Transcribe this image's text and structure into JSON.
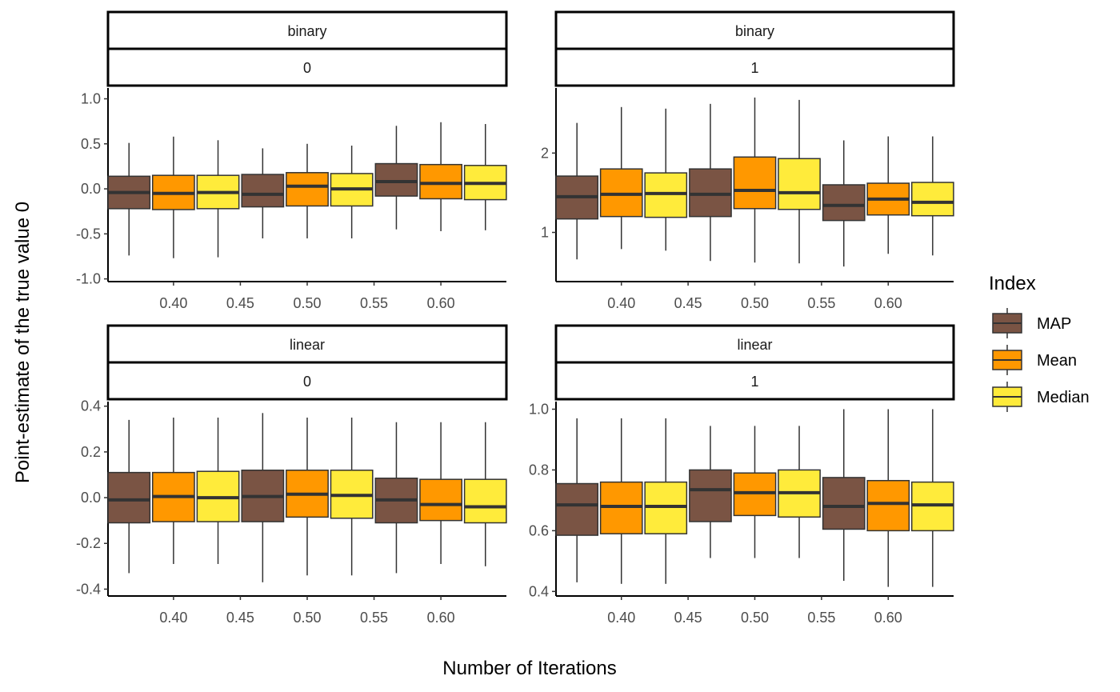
{
  "chart_data": {
    "type": "boxplot",
    "xlabel": "Number of Iterations",
    "ylabel": "Point-estimate of the true value 0",
    "legend": {
      "title": "Index",
      "position": "right",
      "entries": [
        {
          "name": "MAP",
          "color": "#7a5444"
        },
        {
          "name": "Mean",
          "color": "#ff9800"
        },
        {
          "name": "Median",
          "color": "#ffeb3b"
        }
      ]
    },
    "x_ticks": [
      0.4,
      0.45,
      0.5,
      0.55,
      0.6
    ],
    "x_tick_labels": [
      "0.40",
      "0.45",
      "0.50",
      "0.55",
      "0.60"
    ],
    "xlim": [
      0.351,
      0.649
    ],
    "groups": [
      0.4,
      0.5,
      0.6
    ],
    "grid": false,
    "panels": [
      {
        "strip_top": "binary",
        "strip_bottom": "0",
        "ylim": [
          -1.03,
          1.12
        ],
        "y_ticks": [
          -1.0,
          -0.5,
          0.0,
          0.5,
          1.0
        ],
        "y_tick_labels": [
          "-1.0",
          "-0.5",
          "0.0",
          "0.5",
          "1.0"
        ],
        "boxes": [
          {
            "x": 0.4,
            "index": "MAP",
            "min": -0.74,
            "q1": -0.22,
            "median": -0.04,
            "q3": 0.14,
            "max": 0.51
          },
          {
            "x": 0.4,
            "index": "Mean",
            "min": -0.77,
            "q1": -0.23,
            "median": -0.05,
            "q3": 0.15,
            "max": 0.58
          },
          {
            "x": 0.4,
            "index": "Median",
            "min": -0.76,
            "q1": -0.22,
            "median": -0.04,
            "q3": 0.15,
            "max": 0.54
          },
          {
            "x": 0.5,
            "index": "MAP",
            "min": -0.55,
            "q1": -0.2,
            "median": -0.06,
            "q3": 0.16,
            "max": 0.45
          },
          {
            "x": 0.5,
            "index": "Mean",
            "min": -0.55,
            "q1": -0.19,
            "median": 0.03,
            "q3": 0.18,
            "max": 0.5
          },
          {
            "x": 0.5,
            "index": "Median",
            "min": -0.55,
            "q1": -0.19,
            "median": 0.0,
            "q3": 0.17,
            "max": 0.48
          },
          {
            "x": 0.6,
            "index": "MAP",
            "min": -0.45,
            "q1": -0.08,
            "median": 0.08,
            "q3": 0.28,
            "max": 0.7
          },
          {
            "x": 0.6,
            "index": "Mean",
            "min": -0.47,
            "q1": -0.11,
            "median": 0.06,
            "q3": 0.27,
            "max": 0.74
          },
          {
            "x": 0.6,
            "index": "Median",
            "min": -0.46,
            "q1": -0.12,
            "median": 0.06,
            "q3": 0.26,
            "max": 0.72
          }
        ]
      },
      {
        "strip_top": "binary",
        "strip_bottom": "1",
        "ylim": [
          0.38,
          2.82
        ],
        "y_ticks": [
          1,
          2
        ],
        "y_tick_labels": [
          "1",
          "2"
        ],
        "boxes": [
          {
            "x": 0.4,
            "index": "MAP",
            "min": 0.66,
            "q1": 1.17,
            "median": 1.45,
            "q3": 1.71,
            "max": 2.38
          },
          {
            "x": 0.4,
            "index": "Mean",
            "min": 0.79,
            "q1": 1.2,
            "median": 1.48,
            "q3": 1.8,
            "max": 2.58
          },
          {
            "x": 0.4,
            "index": "Median",
            "min": 0.77,
            "q1": 1.19,
            "median": 1.49,
            "q3": 1.75,
            "max": 2.56
          },
          {
            "x": 0.5,
            "index": "MAP",
            "min": 0.64,
            "q1": 1.2,
            "median": 1.48,
            "q3": 1.8,
            "max": 2.62
          },
          {
            "x": 0.5,
            "index": "Mean",
            "min": 0.62,
            "q1": 1.3,
            "median": 1.53,
            "q3": 1.95,
            "max": 2.7
          },
          {
            "x": 0.5,
            "index": "Median",
            "min": 0.61,
            "q1": 1.29,
            "median": 1.5,
            "q3": 1.93,
            "max": 2.67
          },
          {
            "x": 0.6,
            "index": "MAP",
            "min": 0.57,
            "q1": 1.15,
            "median": 1.34,
            "q3": 1.6,
            "max": 2.16
          },
          {
            "x": 0.6,
            "index": "Mean",
            "min": 0.73,
            "q1": 1.22,
            "median": 1.42,
            "q3": 1.62,
            "max": 2.21
          },
          {
            "x": 0.6,
            "index": "Median",
            "min": 0.71,
            "q1": 1.21,
            "median": 1.38,
            "q3": 1.63,
            "max": 2.21
          }
        ]
      },
      {
        "strip_top": "linear",
        "strip_bottom": "0",
        "ylim": [
          -0.43,
          0.42
        ],
        "y_ticks": [
          -0.4,
          -0.2,
          0.0,
          0.2,
          0.4
        ],
        "y_tick_labels": [
          "-0.4",
          "-0.2",
          "0.0",
          "0.2",
          "0.4"
        ],
        "boxes": [
          {
            "x": 0.4,
            "index": "MAP",
            "min": -0.33,
            "q1": -0.11,
            "median": -0.01,
            "q3": 0.11,
            "max": 0.34
          },
          {
            "x": 0.4,
            "index": "Mean",
            "min": -0.29,
            "q1": -0.105,
            "median": 0.005,
            "q3": 0.11,
            "max": 0.35
          },
          {
            "x": 0.4,
            "index": "Median",
            "min": -0.29,
            "q1": -0.105,
            "median": 0.0,
            "q3": 0.115,
            "max": 0.35
          },
          {
            "x": 0.5,
            "index": "MAP",
            "min": -0.37,
            "q1": -0.105,
            "median": 0.005,
            "q3": 0.12,
            "max": 0.37
          },
          {
            "x": 0.5,
            "index": "Mean",
            "min": -0.34,
            "q1": -0.085,
            "median": 0.015,
            "q3": 0.12,
            "max": 0.35
          },
          {
            "x": 0.5,
            "index": "Median",
            "min": -0.34,
            "q1": -0.09,
            "median": 0.01,
            "q3": 0.12,
            "max": 0.35
          },
          {
            "x": 0.6,
            "index": "MAP",
            "min": -0.33,
            "q1": -0.11,
            "median": -0.01,
            "q3": 0.085,
            "max": 0.33
          },
          {
            "x": 0.6,
            "index": "Mean",
            "min": -0.29,
            "q1": -0.1,
            "median": -0.03,
            "q3": 0.08,
            "max": 0.33
          },
          {
            "x": 0.6,
            "index": "Median",
            "min": -0.3,
            "q1": -0.11,
            "median": -0.04,
            "q3": 0.08,
            "max": 0.33
          }
        ]
      },
      {
        "strip_top": "linear",
        "strip_bottom": "1",
        "ylim": [
          0.385,
          1.025
        ],
        "y_ticks": [
          0.4,
          0.6,
          0.8,
          1.0
        ],
        "y_tick_labels": [
          "0.4",
          "0.6",
          "0.8",
          "1.0"
        ],
        "boxes": [
          {
            "x": 0.4,
            "index": "MAP",
            "min": 0.43,
            "q1": 0.585,
            "median": 0.685,
            "q3": 0.755,
            "max": 0.97
          },
          {
            "x": 0.4,
            "index": "Mean",
            "min": 0.425,
            "q1": 0.59,
            "median": 0.68,
            "q3": 0.76,
            "max": 0.97
          },
          {
            "x": 0.4,
            "index": "Median",
            "min": 0.425,
            "q1": 0.59,
            "median": 0.68,
            "q3": 0.76,
            "max": 0.97
          },
          {
            "x": 0.5,
            "index": "MAP",
            "min": 0.51,
            "q1": 0.63,
            "median": 0.735,
            "q3": 0.8,
            "max": 0.945
          },
          {
            "x": 0.5,
            "index": "Mean",
            "min": 0.51,
            "q1": 0.65,
            "median": 0.725,
            "q3": 0.79,
            "max": 0.945
          },
          {
            "x": 0.5,
            "index": "Median",
            "min": 0.51,
            "q1": 0.645,
            "median": 0.725,
            "q3": 0.8,
            "max": 0.945
          },
          {
            "x": 0.6,
            "index": "MAP",
            "min": 0.435,
            "q1": 0.605,
            "median": 0.68,
            "q3": 0.775,
            "max": 1.0
          },
          {
            "x": 0.6,
            "index": "Mean",
            "min": 0.415,
            "q1": 0.6,
            "median": 0.69,
            "q3": 0.765,
            "max": 1.0
          },
          {
            "x": 0.6,
            "index": "Median",
            "min": 0.415,
            "q1": 0.6,
            "median": 0.685,
            "q3": 0.76,
            "max": 1.0
          }
        ]
      }
    ]
  }
}
